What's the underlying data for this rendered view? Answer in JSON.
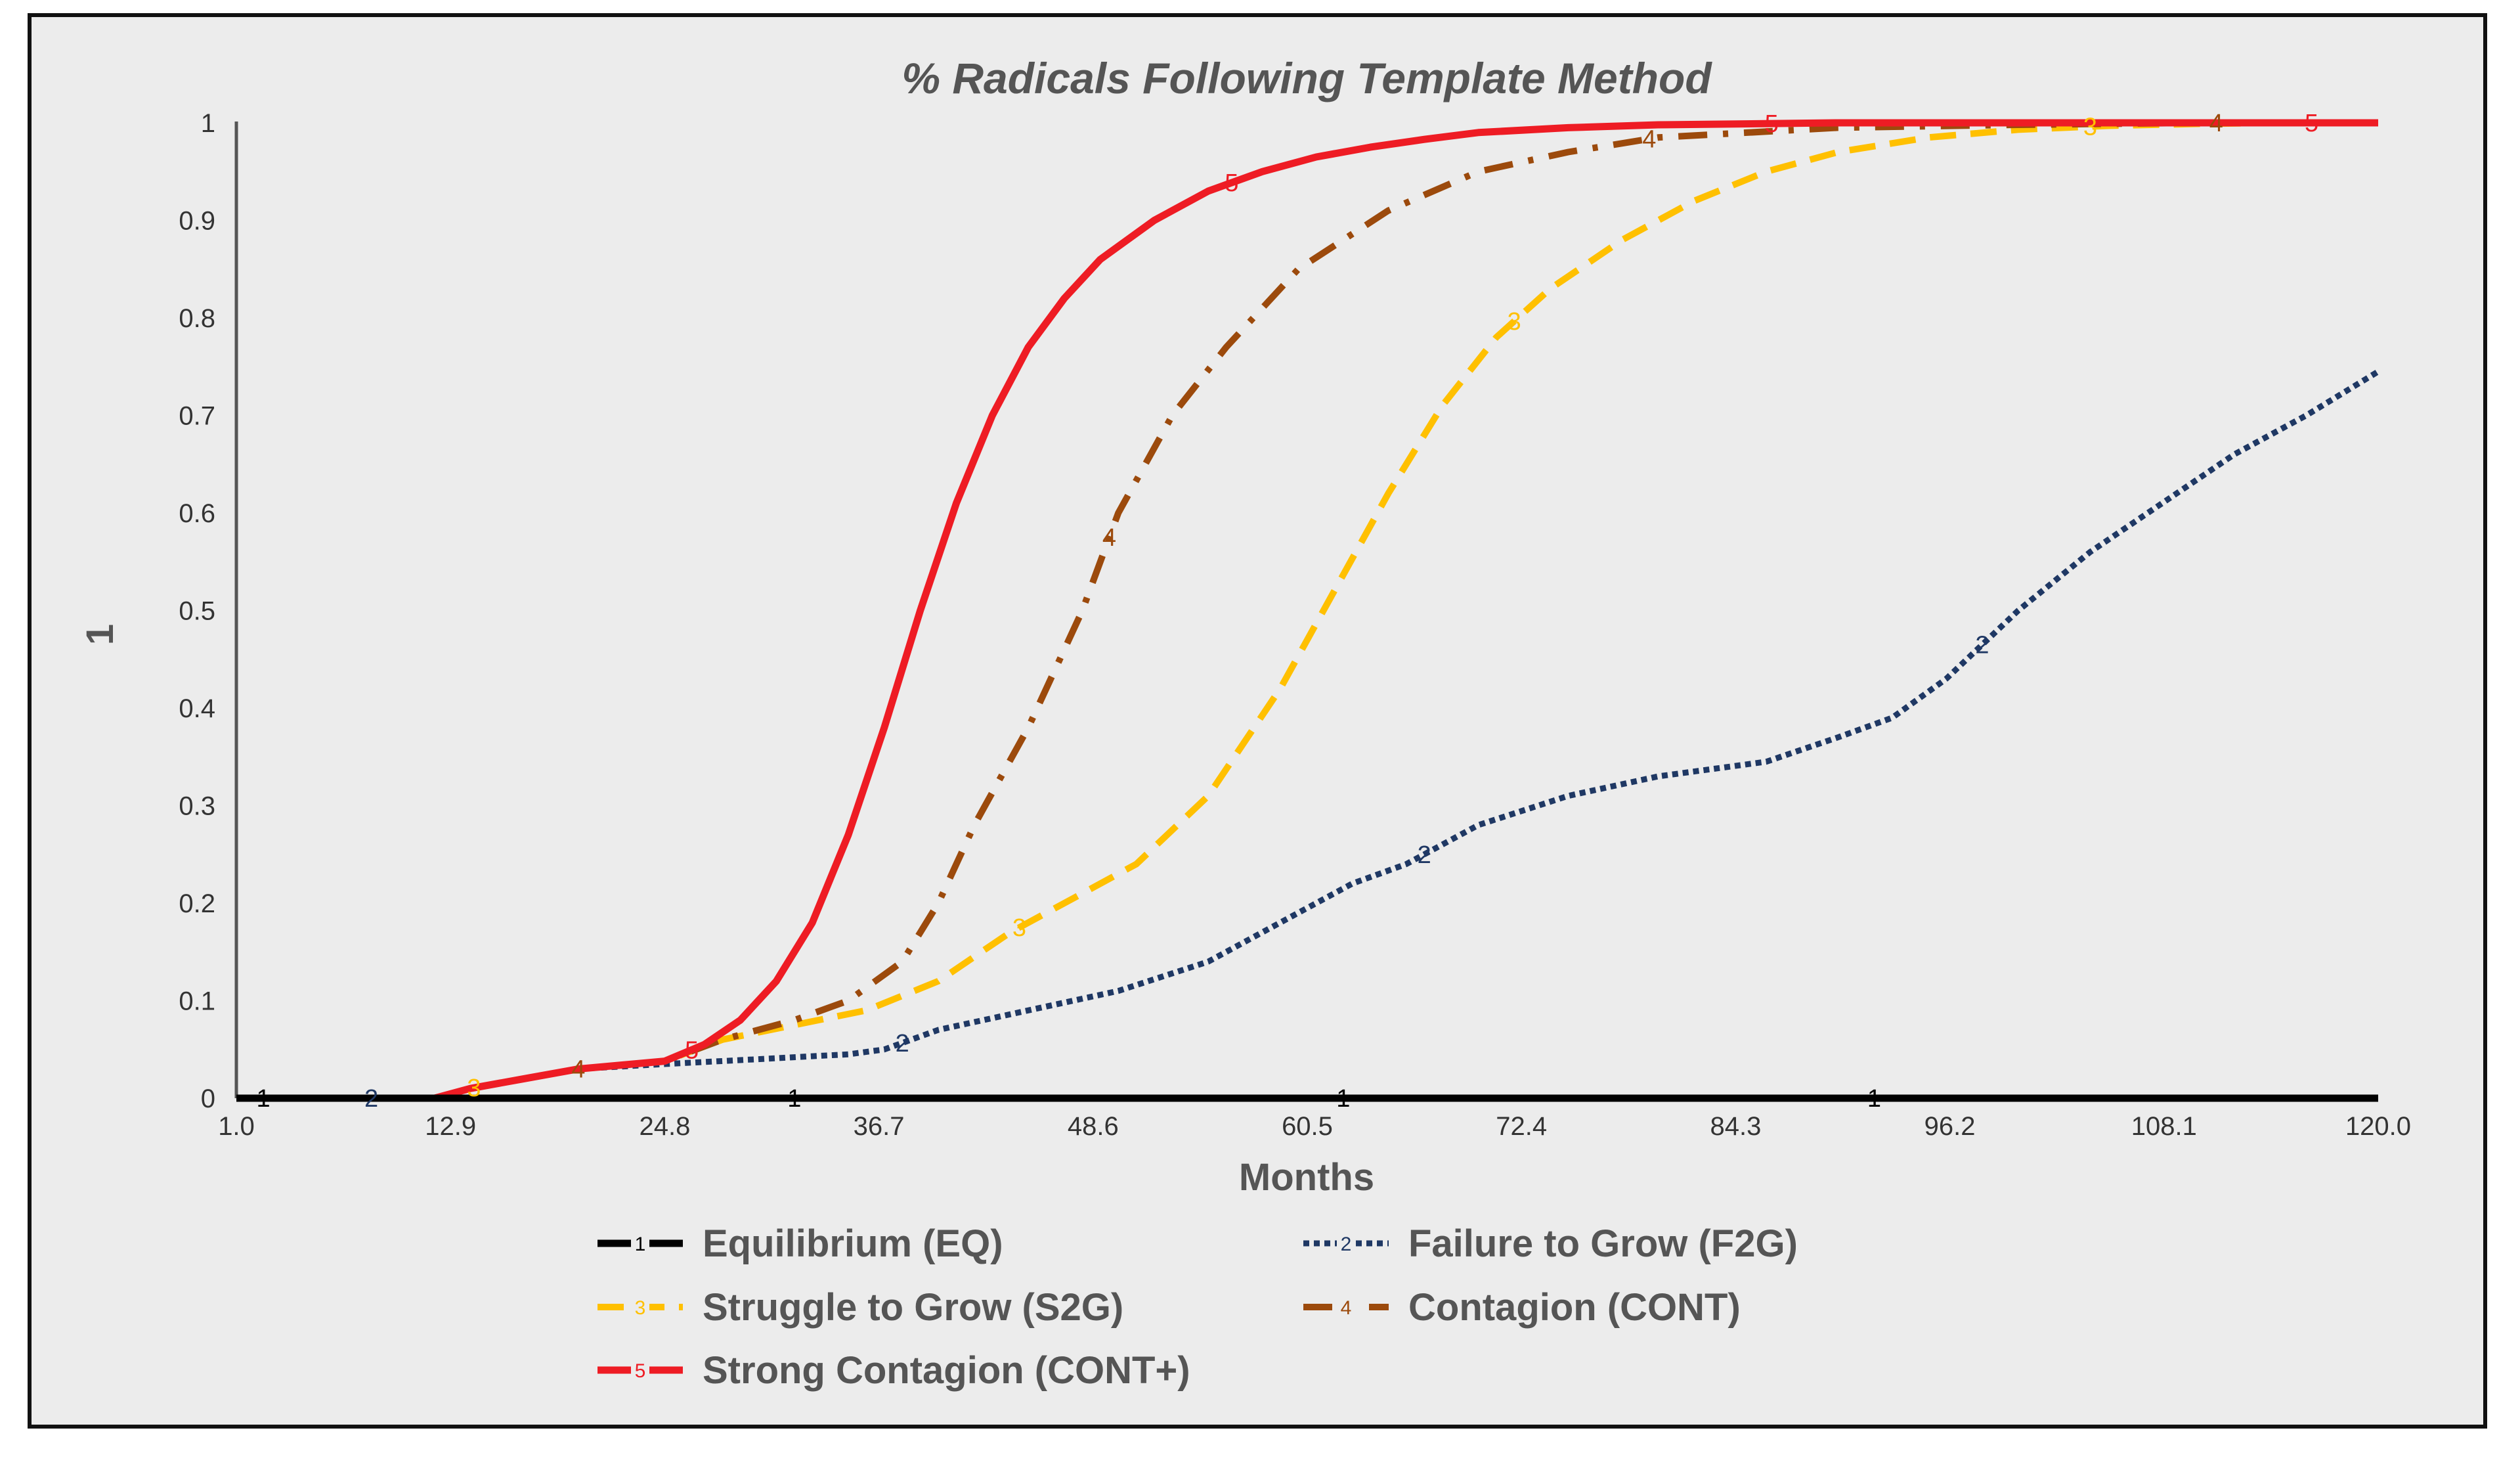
{
  "chart_data": {
    "type": "line",
    "title": "% Radicals Following Template Method",
    "xlabel": "Months",
    "ylabel": "1",
    "xlim": [
      1.0,
      120.0
    ],
    "ylim": [
      0,
      1
    ],
    "x_ticks": [
      "1.0",
      "12.9",
      "24.8",
      "36.7",
      "48.6",
      "60.5",
      "72.4",
      "84.3",
      "96.2",
      "108.1",
      "120.0"
    ],
    "y_ticks": [
      "0",
      "0.1",
      "0.2",
      "0.3",
      "0.4",
      "0.5",
      "0.6",
      "0.7",
      "0.8",
      "0.9",
      "1"
    ],
    "grid": false,
    "legend_position": "bottom",
    "series": [
      {
        "name": "Equilibrium (EQ)",
        "marker": "1",
        "color": "#000000",
        "style": "solid",
        "x": [
          1,
          120
        ],
        "y": [
          0,
          0
        ],
        "marker_x": [
          2.5,
          32.0,
          62.5,
          92.0
        ]
      },
      {
        "name": "Failure to Grow (F2G)",
        "marker": "2",
        "color": "#1f3864",
        "style": "dotted",
        "x": [
          1,
          5,
          10,
          12,
          14,
          17,
          20,
          24.8,
          30,
          35,
          37,
          40,
          45,
          50,
          55,
          60,
          63,
          66,
          70,
          75,
          80,
          86,
          90,
          93,
          96,
          100,
          104,
          108,
          112,
          116,
          120
        ],
        "y": [
          0,
          0,
          0,
          0,
          0.01,
          0.02,
          0.03,
          0.035,
          0.04,
          0.045,
          0.05,
          0.07,
          0.09,
          0.11,
          0.14,
          0.19,
          0.22,
          0.24,
          0.28,
          0.31,
          0.33,
          0.345,
          0.37,
          0.39,
          0.43,
          0.5,
          0.56,
          0.61,
          0.66,
          0.7,
          0.745
        ],
        "marker_x": [
          8.5,
          38.0,
          67.0,
          98.0
        ]
      },
      {
        "name": "Struggle to Grow (S2G)",
        "marker": "3",
        "color": "#ffc000",
        "style": "dashed",
        "x": [
          1,
          10,
          12,
          14,
          17,
          20,
          24.8,
          28,
          32,
          36,
          40,
          44,
          48,
          51,
          55,
          59,
          62,
          65,
          68,
          71,
          74,
          78,
          82,
          86,
          90,
          95,
          100,
          105,
          110,
          115,
          120
        ],
        "y": [
          0,
          0,
          0,
          0.01,
          0.02,
          0.03,
          0.038,
          0.06,
          0.075,
          0.09,
          0.12,
          0.17,
          0.21,
          0.24,
          0.31,
          0.42,
          0.52,
          0.62,
          0.71,
          0.78,
          0.83,
          0.88,
          0.92,
          0.95,
          0.97,
          0.985,
          0.993,
          0.997,
          0.999,
          1.0,
          1.0
        ],
        "marker_x": [
          14.2,
          44.5,
          72.0,
          104.0
        ]
      },
      {
        "name": "Contagion (CONT)",
        "marker": "4",
        "color": "#9c4a0c",
        "style": "dashdot",
        "x": [
          1,
          10,
          12,
          14,
          17,
          20,
          24.8,
          28,
          32,
          35,
          38,
          40,
          42,
          45,
          48,
          50,
          53,
          56,
          60,
          65,
          70,
          75,
          80,
          85,
          90,
          100,
          110,
          120
        ],
        "y": [
          0,
          0,
          0,
          0.01,
          0.02,
          0.03,
          0.038,
          0.06,
          0.08,
          0.1,
          0.14,
          0.2,
          0.28,
          0.38,
          0.5,
          0.6,
          0.7,
          0.77,
          0.85,
          0.91,
          0.95,
          0.97,
          0.985,
          0.99,
          0.995,
          0.998,
          1.0,
          1.0
        ],
        "marker_x": [
          20.0,
          49.5,
          79.5,
          111.0
        ]
      },
      {
        "name": "Strong Contagion (CONT+)",
        "marker": "5",
        "color": "#ee1c24",
        "style": "solid",
        "x": [
          1,
          10,
          12,
          14,
          17,
          20,
          24.8,
          27,
          29,
          31,
          33,
          35,
          37,
          39,
          41,
          43,
          45,
          47,
          49,
          52,
          55,
          58,
          61,
          64,
          67,
          70,
          75,
          80,
          90,
          100,
          110,
          120
        ],
        "y": [
          0,
          0,
          0,
          0.01,
          0.02,
          0.03,
          0.038,
          0.055,
          0.08,
          0.12,
          0.18,
          0.27,
          0.38,
          0.5,
          0.61,
          0.7,
          0.77,
          0.82,
          0.86,
          0.9,
          0.93,
          0.95,
          0.965,
          0.975,
          0.983,
          0.99,
          0.995,
          0.998,
          1.0,
          1.0,
          1.0,
          1.0
        ],
        "marker_x": [
          26.3,
          56.3,
          86.3,
          116.3
        ]
      }
    ]
  }
}
